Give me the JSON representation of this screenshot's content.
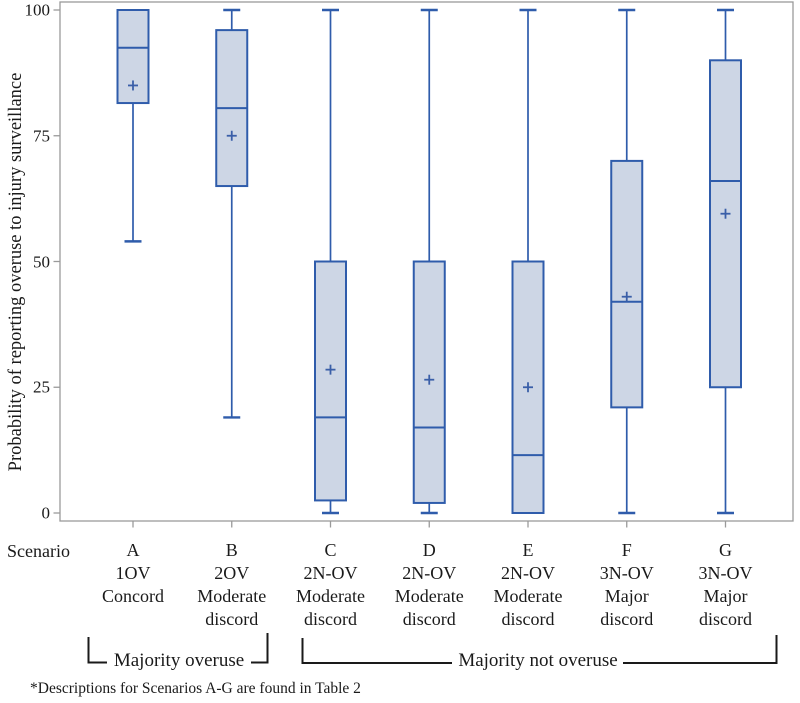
{
  "chart_data": {
    "type": "boxplot",
    "title": "",
    "xlabel": "Scenario",
    "ylabel": "Probability of reporting overuse to injury surveillance",
    "ylim": [
      0,
      100
    ],
    "yticks": [
      0,
      25,
      50,
      75,
      100
    ],
    "grid": false,
    "legend": "none",
    "boxes": [
      {
        "scenario": "A",
        "code": "1OV",
        "description": "Concord",
        "min": 54,
        "q1": 81.5,
        "median": 92.5,
        "q3": 100,
        "max": 100,
        "mean": 85
      },
      {
        "scenario": "B",
        "code": "2OV",
        "description": "Moderate discord",
        "min": 19,
        "q1": 65,
        "median": 80.5,
        "q3": 96,
        "max": 100,
        "mean": 75
      },
      {
        "scenario": "C",
        "code": "2N-OV",
        "description": "Moderate discord",
        "min": 0,
        "q1": 2.5,
        "median": 19,
        "q3": 50,
        "max": 100,
        "mean": 28.5
      },
      {
        "scenario": "D",
        "code": "2N-OV",
        "description": "Moderate discord",
        "min": 0,
        "q1": 2,
        "median": 17,
        "q3": 50,
        "max": 100,
        "mean": 26.5
      },
      {
        "scenario": "E",
        "code": "2N-OV",
        "description": "Moderate discord",
        "min": 0,
        "q1": 0,
        "median": 11.5,
        "q3": 50,
        "max": 100,
        "mean": 25
      },
      {
        "scenario": "F",
        "code": "3N-OV",
        "description": "Major discord",
        "min": 0,
        "q1": 21,
        "median": 42,
        "q3": 70,
        "max": 100,
        "mean": 43
      },
      {
        "scenario": "G",
        "code": "3N-OV",
        "description": "Major discord",
        "min": 0,
        "q1": 25,
        "median": 66,
        "q3": 90,
        "max": 100,
        "mean": 59.5
      }
    ],
    "group_brackets": [
      {
        "label": "Majority overuse",
        "start_scenario": "A",
        "end_scenario": "B"
      },
      {
        "label": "Majority not overuse",
        "start_scenario": "C",
        "end_scenario": "G"
      }
    ],
    "footnote": "*Descriptions for Scenarios A-G are found in Table 2",
    "colors": {
      "box_fill": "#cdd6e5",
      "box_stroke": "#2f5cab",
      "mean_marker": "#3a5fa8",
      "axis": "#9a9a9a",
      "bracket": "#1a1a1a",
      "text": "#1a1a1a"
    }
  }
}
